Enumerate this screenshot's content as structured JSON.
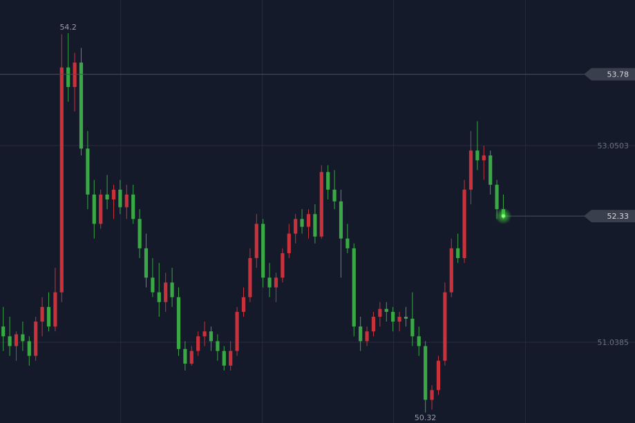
{
  "chart_data": {
    "type": "candlestick",
    "x": [
      0,
      1,
      2,
      3,
      4,
      5,
      6,
      7,
      8,
      9,
      10,
      11,
      12,
      13,
      14,
      15,
      16,
      17,
      18,
      19,
      20,
      21,
      22,
      23,
      24,
      25,
      26,
      27,
      28,
      29,
      30,
      31,
      32,
      33,
      34,
      35,
      36,
      37,
      38,
      39,
      40,
      41,
      42,
      43,
      44,
      45,
      46,
      47,
      48,
      49,
      50,
      51,
      52,
      53,
      54,
      55,
      56,
      57,
      58,
      59,
      60,
      61,
      62,
      63,
      64,
      65,
      66,
      67,
      68,
      69,
      70,
      71,
      72,
      73,
      74,
      75,
      76,
      77
    ],
    "open": [
      51.2,
      51.1,
      51.0,
      51.12,
      51.05,
      50.9,
      51.25,
      51.4,
      51.2,
      51.55,
      53.85,
      53.65,
      53.9,
      53.02,
      52.55,
      52.25,
      52.55,
      52.5,
      52.6,
      52.42,
      52.55,
      52.3,
      52.0,
      51.7,
      51.55,
      51.45,
      51.65,
      51.5,
      50.97,
      50.82,
      50.95,
      51.1,
      51.15,
      51.05,
      50.95,
      50.8,
      50.95,
      51.35,
      51.5,
      51.9,
      52.25,
      51.7,
      51.6,
      51.7,
      51.95,
      52.15,
      52.3,
      52.22,
      52.35,
      52.12,
      52.78,
      52.6,
      52.48,
      52.1,
      52.0,
      51.2,
      51.05,
      51.15,
      51.3,
      51.38,
      51.35,
      51.25,
      51.3,
      51.28,
      51.1,
      51.0,
      50.45,
      50.55,
      50.85,
      51.55,
      52.0,
      51.9,
      52.6,
      53.0,
      52.9,
      52.95,
      52.65,
      52.4
    ],
    "high": [
      51.4,
      51.3,
      51.15,
      51.25,
      51.1,
      51.3,
      51.5,
      51.55,
      51.8,
      54.19,
      54.2,
      54.0,
      54.05,
      53.2,
      52.7,
      52.6,
      52.75,
      52.65,
      52.7,
      52.65,
      52.65,
      52.4,
      52.15,
      51.9,
      51.85,
      51.75,
      51.8,
      51.6,
      51.05,
      51.0,
      51.15,
      51.25,
      51.2,
      51.12,
      51.0,
      51.05,
      51.4,
      51.6,
      52.0,
      52.35,
      52.3,
      51.85,
      51.75,
      52.0,
      52.25,
      52.35,
      52.4,
      52.4,
      52.45,
      52.85,
      52.85,
      52.8,
      52.6,
      52.25,
      52.05,
      51.3,
      51.2,
      51.35,
      51.45,
      51.45,
      51.4,
      51.35,
      51.4,
      51.55,
      51.2,
      51.05,
      50.6,
      50.9,
      51.65,
      52.1,
      52.15,
      52.7,
      53.2,
      53.3,
      53.05,
      53.0,
      52.7,
      52.55
    ],
    "low": [
      50.95,
      50.9,
      50.85,
      50.95,
      50.8,
      50.85,
      51.1,
      51.15,
      51.15,
      51.45,
      53.5,
      53.4,
      52.95,
      52.4,
      52.1,
      52.2,
      52.4,
      52.3,
      52.35,
      52.3,
      52.25,
      51.9,
      51.6,
      51.5,
      51.3,
      51.35,
      51.4,
      50.9,
      50.75,
      50.8,
      50.9,
      51.0,
      50.95,
      50.85,
      50.75,
      50.75,
      50.9,
      51.3,
      51.45,
      51.8,
      51.6,
      51.5,
      51.45,
      51.65,
      51.9,
      52.05,
      52.15,
      52.1,
      52.05,
      52.1,
      52.5,
      52.4,
      51.7,
      51.95,
      51.1,
      50.95,
      51.0,
      51.1,
      51.2,
      51.25,
      51.15,
      51.15,
      51.2,
      51.0,
      50.9,
      50.32,
      50.35,
      50.5,
      50.8,
      51.5,
      51.85,
      51.85,
      52.45,
      52.8,
      52.7,
      52.55,
      52.3,
      52.3
    ],
    "close": [
      51.1,
      51.0,
      51.12,
      51.05,
      50.9,
      51.25,
      51.4,
      51.2,
      51.55,
      53.85,
      53.65,
      53.9,
      53.02,
      52.55,
      52.25,
      52.55,
      52.5,
      52.6,
      52.42,
      52.55,
      52.3,
      52.0,
      51.7,
      51.55,
      51.45,
      51.65,
      51.5,
      50.97,
      50.82,
      50.95,
      51.1,
      51.15,
      51.05,
      50.95,
      50.8,
      50.95,
      51.35,
      51.5,
      51.9,
      52.25,
      51.7,
      51.6,
      51.7,
      51.95,
      52.15,
      52.3,
      52.22,
      52.35,
      52.12,
      52.78,
      52.6,
      52.48,
      52.1,
      52.0,
      51.2,
      51.05,
      51.15,
      51.3,
      51.38,
      51.35,
      51.25,
      51.3,
      51.28,
      51.1,
      51.0,
      50.45,
      50.55,
      50.85,
      51.55,
      52.0,
      51.9,
      52.6,
      53.0,
      52.9,
      52.95,
      52.65,
      52.4,
      52.33
    ],
    "up_color": "#c9323b",
    "down_color": "#3aa845",
    "xlim": [
      -0.5,
      97.27
    ],
    "xticks": [
      18.1,
      39.9,
      60.1,
      80.4
    ],
    "ylim": [
      50.213,
      54.54
    ],
    "yticks": [
      53.0503,
      51.0385
    ],
    "grid": true,
    "max_marker": 54.2,
    "min_marker": 50.32,
    "price_lines": [
      {
        "value": 53.78,
        "color": "#4a4f5e"
      },
      {
        "value": 52.33,
        "color": "#4a4f5e",
        "last": true
      }
    ]
  }
}
